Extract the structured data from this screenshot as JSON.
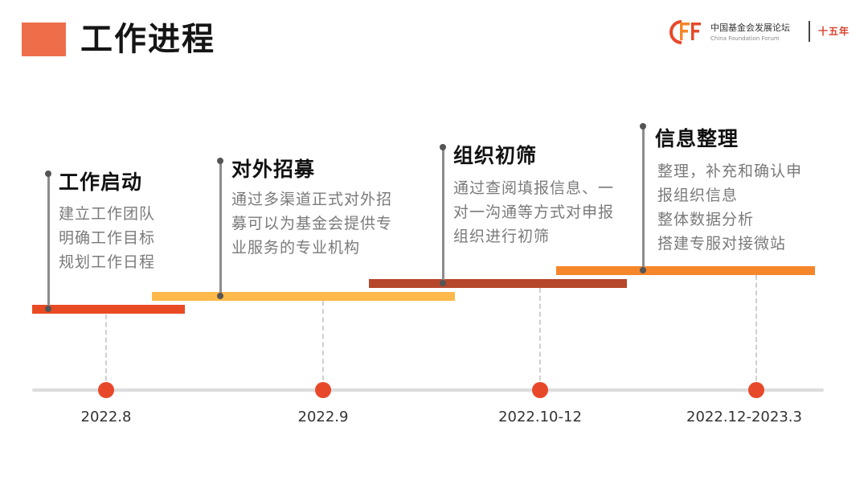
{
  "header": {
    "title": "工作进程",
    "logo_name_cn": "中国基金会发展论坛",
    "logo_name_en": "China Foundation Forum",
    "logo_tag": "十五年"
  },
  "colors": {
    "title_block": "#ee6e4a",
    "milestone_dot": "#e8482a",
    "bar_stage1": "#e84a23",
    "bar_stage2": "#ffb94a",
    "bar_stage3": "#b7472a",
    "bar_stage4": "#f5862a"
  },
  "stages": [
    {
      "title": "工作启动",
      "description": "建立工作团队\n明确工作目标\n规划工作日程"
    },
    {
      "title": "对外招募",
      "description": "通过多渠道正式对外招\n募可以为基金会提供专\n业服务的专业机构"
    },
    {
      "title": "组织初筛",
      "description": "通过查阅填报信息、一\n对一沟通等方式对申报\n组织进行初筛"
    },
    {
      "title": "信息整理",
      "description": "整理，补充和确认申\n报组织信息\n整体数据分析\n搭建专服对接微站"
    }
  ],
  "timeline": {
    "dates": [
      "2022.8",
      "2022.9",
      "2022.10-12",
      "2022.12-2023.3"
    ]
  }
}
